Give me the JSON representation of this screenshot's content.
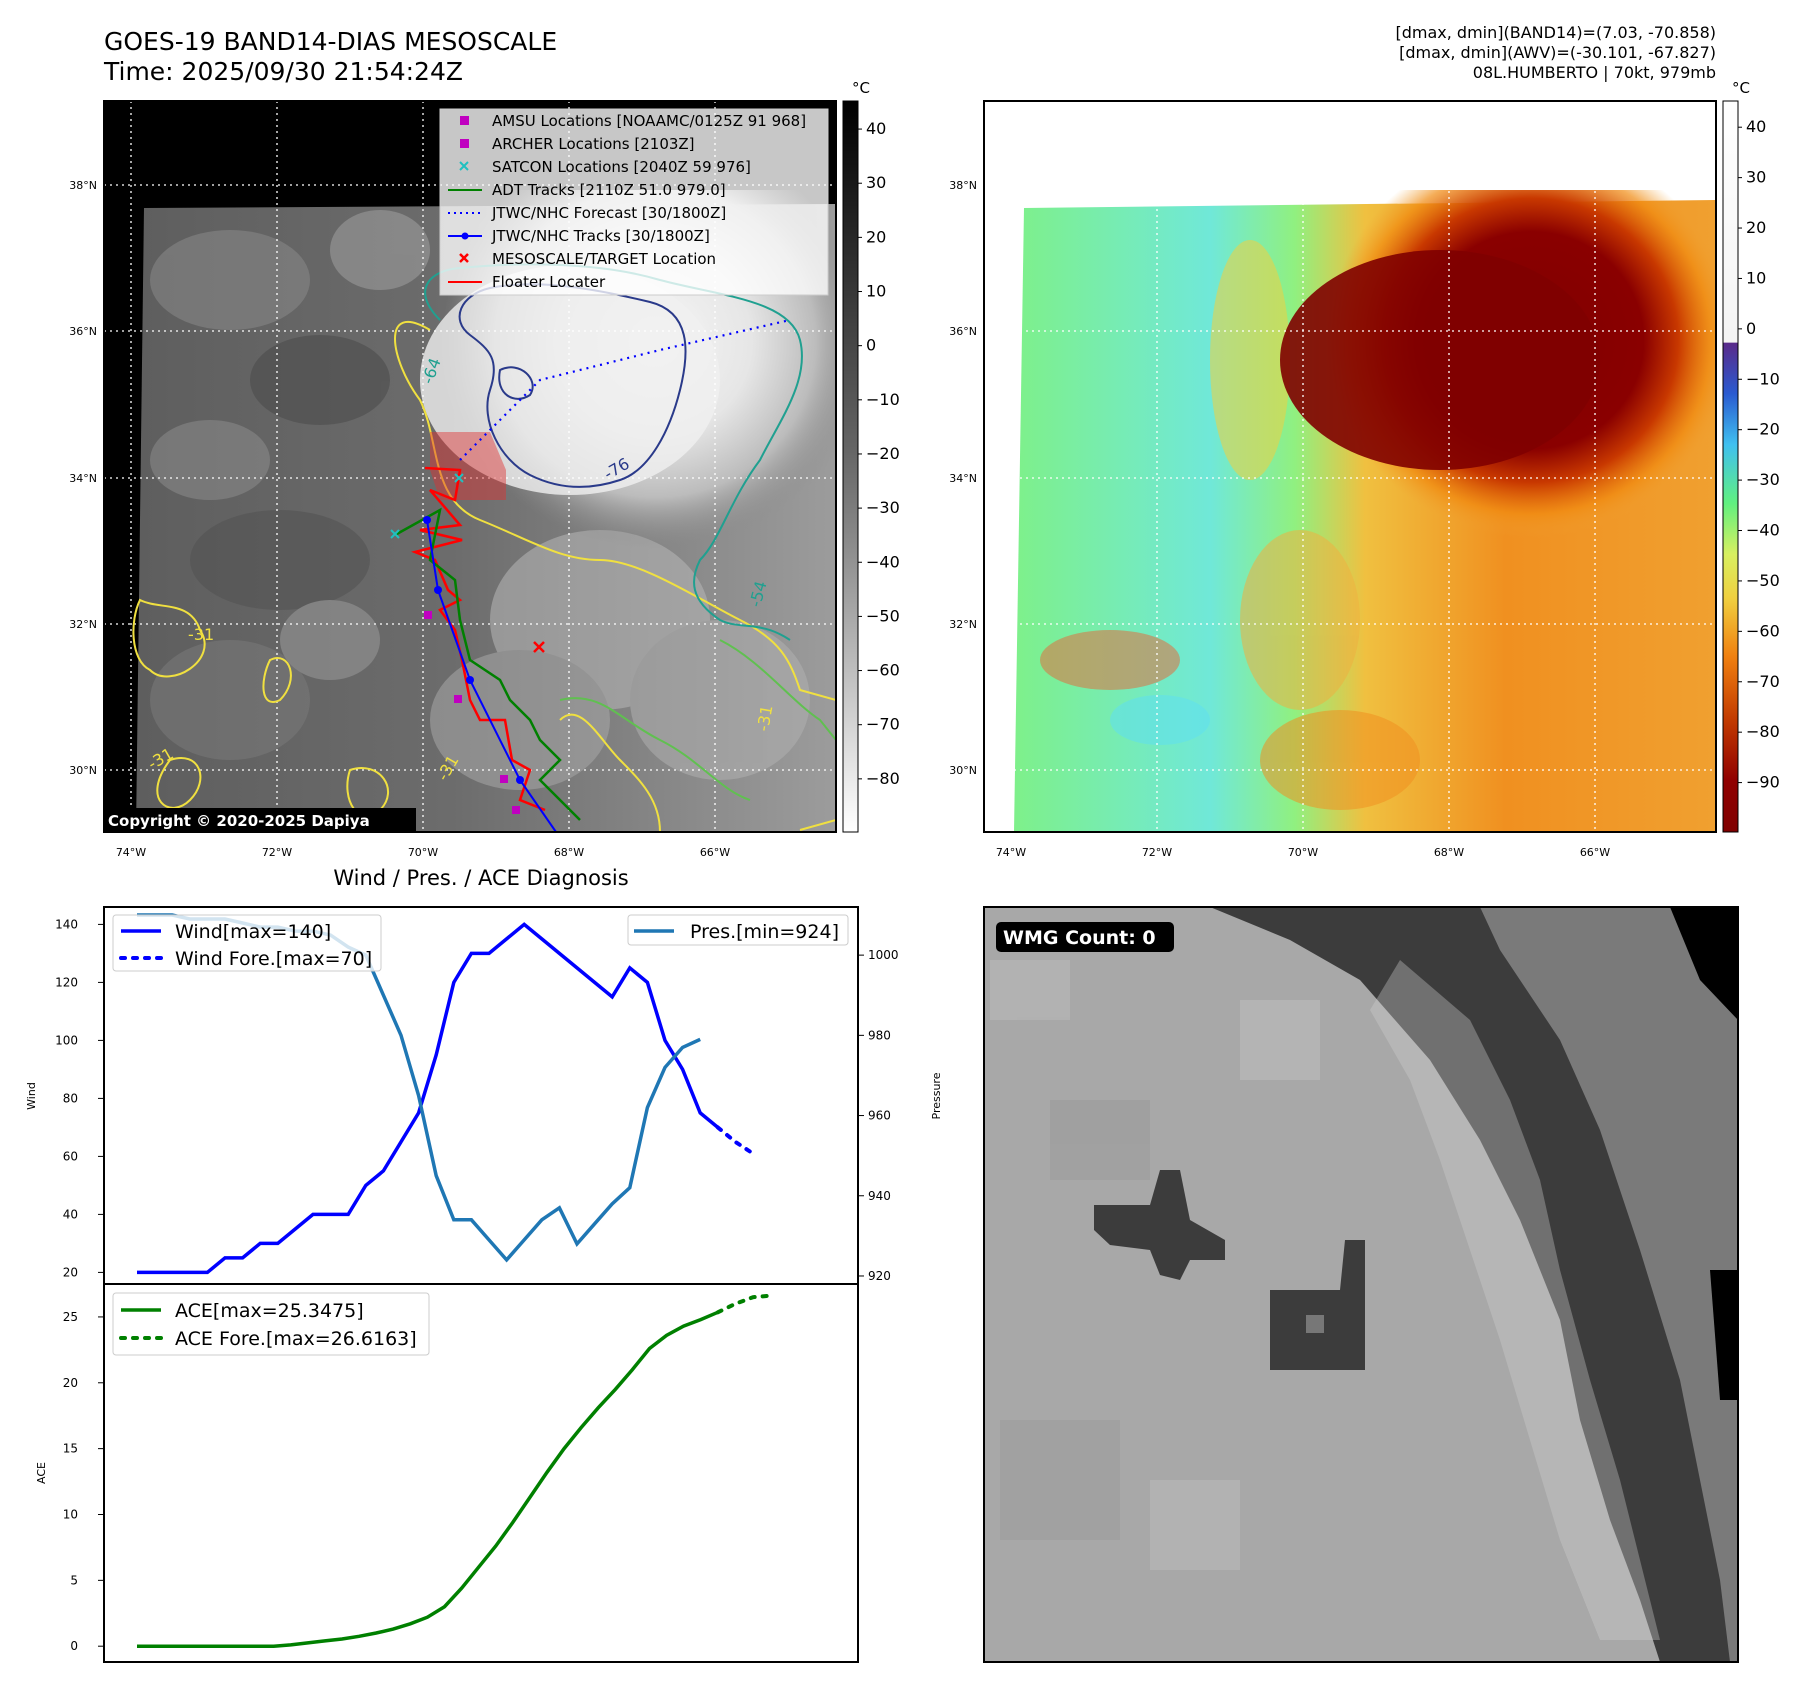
{
  "header": {
    "title_line1": "GOES-19 BAND14-DIAS MESOSCALE",
    "title_line2": "Time: 2025/09/30 21:54:24Z",
    "info_line1": "[dmax, dmin](BAND14)=(7.03, -70.858)",
    "info_line2": "[dmax, dmin](AWV)=(-30.101, -67.827)",
    "info_line3": "08L.HUMBERTO | 70kt, 979mb"
  },
  "map": {
    "lat_labels": [
      "38°N",
      "36°N",
      "34°N",
      "32°N",
      "30°N"
    ],
    "lon_labels": [
      "74°W",
      "72°W",
      "70°W",
      "68°W",
      "66°W"
    ],
    "copyright": "Copyright © 2020-2025 Dapiya",
    "contour_labels": [
      "-64",
      "-76",
      "-54",
      "-31",
      "-31",
      "-31",
      "-31"
    ],
    "legend": [
      {
        "label": "AMSU Locations [NOAAMC/0125Z 91 968]",
        "marker": "square",
        "color": "#c000c0"
      },
      {
        "label": "ARCHER Locations [2103Z]",
        "marker": "square",
        "color": "#c000c0"
      },
      {
        "label": "SATCON Locations [2040Z 59 976]",
        "marker": "x",
        "color": "#20c0c0"
      },
      {
        "label": "ADT Tracks [2110Z 51.0 979.0]",
        "marker": "line",
        "color": "#008000"
      },
      {
        "label": "JTWC/NHC Forecast [30/1800Z]",
        "marker": "dotted",
        "color": "#0000ff"
      },
      {
        "label": "JTWC/NHC Tracks [30/1800Z]",
        "marker": "line-dot",
        "color": "#0000ff"
      },
      {
        "label": "MESOSCALE/TARGET Location",
        "marker": "x",
        "color": "#ff0000"
      },
      {
        "label": "Floater Locater",
        "marker": "line",
        "color": "#ff0000"
      }
    ]
  },
  "colorbar_gray": {
    "unit": "°C",
    "ticks": [
      "40",
      "30",
      "20",
      "10",
      "0",
      "−10",
      "−20",
      "−30",
      "−40",
      "−50",
      "−60",
      "−70",
      "−80"
    ]
  },
  "colorbar_color": {
    "unit": "°C",
    "ticks": [
      "40",
      "30",
      "20",
      "10",
      "0",
      "−10",
      "−20",
      "−30",
      "−40",
      "−50",
      "−60",
      "−70",
      "−80",
      "−90"
    ]
  },
  "wmg": {
    "label": "WMG Count: 0"
  },
  "chart_data": [
    {
      "type": "line",
      "title": "Wind / Pres. / ACE Diagnosis",
      "ylabel": "Wind",
      "ylabel_right": "Pressure",
      "ylim": [
        16,
        146
      ],
      "ylim_right": [
        918,
        1012
      ],
      "yticks": [
        20,
        40,
        60,
        80,
        100,
        120,
        140
      ],
      "yticks_right": [
        920,
        940,
        960,
        980,
        1000
      ],
      "series": [
        {
          "name": "Wind[max=140]",
          "color": "#0000ff",
          "style": "solid",
          "axis": "left",
          "values": [
            20,
            20,
            20,
            20,
            20,
            25,
            25,
            30,
            30,
            35,
            40,
            40,
            40,
            50,
            55,
            65,
            75,
            95,
            120,
            130,
            130,
            135,
            140,
            135,
            130,
            125,
            120,
            115,
            125,
            120,
            100,
            90,
            75,
            70
          ]
        },
        {
          "name": "Wind Fore.[max=70]",
          "color": "#0000ff",
          "style": "dotted",
          "axis": "left",
          "values": [
            70,
            65,
            61
          ]
        },
        {
          "name": "Pres.[min=924]",
          "color": "#1f77b4",
          "style": "solid",
          "axis": "right",
          "values": [
            1010,
            1010,
            1010,
            1009,
            1009,
            1009,
            1008,
            1007,
            1007,
            1006,
            1006,
            1005,
            1002,
            1000,
            990,
            980,
            965,
            945,
            934,
            934,
            929,
            924,
            929,
            934,
            937,
            928,
            933,
            938,
            942,
            962,
            972,
            977,
            979
          ]
        }
      ]
    },
    {
      "type": "line",
      "ylabel": "ACE",
      "ylim": [
        -1.2,
        27.5
      ],
      "yticks": [
        0,
        5,
        10,
        15,
        20,
        25
      ],
      "series": [
        {
          "name": "ACE[max=25.3475]",
          "color": "#008000",
          "style": "solid",
          "values": [
            0,
            0,
            0,
            0,
            0,
            0,
            0,
            0,
            0,
            0.1,
            0.25,
            0.4,
            0.55,
            0.75,
            1.0,
            1.3,
            1.7,
            2.2,
            3.0,
            4.4,
            6.0,
            7.6,
            9.4,
            11.3,
            13.2,
            15.0,
            16.6,
            18.1,
            19.5,
            21.0,
            22.6,
            23.6,
            24.3,
            24.8,
            25.3475
          ]
        },
        {
          "name": "ACE Fore.[max=26.6163]",
          "color": "#008000",
          "style": "dotted",
          "values": [
            25.3475,
            26.0,
            26.5,
            26.6163
          ]
        }
      ]
    }
  ]
}
